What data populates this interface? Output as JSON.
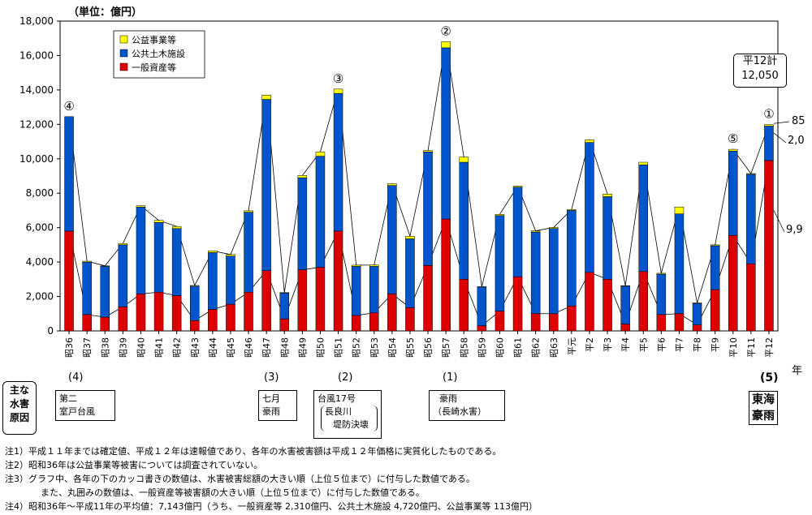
{
  "unit_label": "（単位：億円）",
  "year_axis_label": "年",
  "legend": [
    {
      "label": "公益事業等",
      "color": "#ffff00"
    },
    {
      "label": "公共土木施設",
      "color": "#0055cc"
    },
    {
      "label": "一般資産等",
      "color": "#dd0000"
    }
  ],
  "chart_data": {
    "type": "bar",
    "stacked": true,
    "ylim": [
      0,
      18000
    ],
    "yticks": [
      "0",
      "2,000",
      "4,000",
      "6,000",
      "8,000",
      "10,000",
      "12,000",
      "14,000",
      "16,000",
      "18,000"
    ],
    "grid": false,
    "legend_position": "top-left",
    "categories": [
      "昭36",
      "昭37",
      "昭38",
      "昭39",
      "昭40",
      "昭41",
      "昭42",
      "昭43",
      "昭44",
      "昭45",
      "昭46",
      "昭47",
      "昭48",
      "昭49",
      "昭50",
      "昭51",
      "昭52",
      "昭53",
      "昭54",
      "昭55",
      "昭56",
      "昭57",
      "昭58",
      "昭59",
      "昭60",
      "昭61",
      "昭62",
      "昭63",
      "平元",
      "平2",
      "平3",
      "平4",
      "平5",
      "平6",
      "平7",
      "平8",
      "平9",
      "平10",
      "平11",
      "平12"
    ],
    "series": [
      {
        "name": "一般資産等",
        "values": [
          5800,
          950,
          800,
          1400,
          2150,
          2250,
          2050,
          600,
          1250,
          1550,
          2250,
          3500,
          700,
          3550,
          3700,
          5800,
          900,
          1050,
          2150,
          1350,
          3800,
          6500,
          3000,
          300,
          1150,
          3150,
          1000,
          1000,
          1450,
          3400,
          3000,
          400,
          3450,
          950,
          1000,
          350,
          2400,
          5550,
          3900,
          9900
        ]
      },
      {
        "name": "公共土木施設",
        "values": [
          6650,
          3050,
          2950,
          3600,
          5050,
          4050,
          3900,
          2000,
          3300,
          2800,
          4650,
          9950,
          1500,
          5350,
          6450,
          8000,
          2850,
          2700,
          6300,
          4000,
          6600,
          9950,
          6800,
          2250,
          5550,
          5200,
          4750,
          4950,
          5550,
          7550,
          4800,
          2200,
          6200,
          2350,
          5800,
          1250,
          2550,
          4900,
          5200,
          2000
        ]
      },
      {
        "name": "公益事業等",
        "values": [
          0,
          50,
          30,
          80,
          70,
          120,
          120,
          40,
          100,
          90,
          80,
          250,
          30,
          130,
          250,
          250,
          70,
          80,
          100,
          150,
          80,
          350,
          300,
          20,
          70,
          60,
          60,
          60,
          50,
          150,
          150,
          30,
          150,
          50,
          400,
          30,
          50,
          100,
          40,
          85
        ]
      }
    ]
  },
  "rank_labels": {
    "昭36": "④",
    "昭51": "③",
    "昭57": "②",
    "平10": "⑤",
    "平12": "①"
  },
  "total_callout": {
    "line1": "平12計",
    "line2": "12,050"
  },
  "side_values": [
    "85",
    "2,0",
    "9,9"
  ],
  "causes": {
    "header": [
      "主な",
      "水害",
      "原因"
    ],
    "items": [
      {
        "year": "昭36",
        "rank": "(4)",
        "lines": [
          "第二",
          "室戸台風"
        ]
      },
      {
        "year": "昭47",
        "rank": "(3)",
        "lines": [
          "七月",
          "豪雨"
        ]
      },
      {
        "year": "昭51",
        "rank": "(2)",
        "lines": [
          "台風17号",
          "長良川",
          "堤防決壊"
        ]
      },
      {
        "year": "昭57",
        "rank": "(1)",
        "lines": [
          "豪雨",
          "（長崎水害）"
        ]
      },
      {
        "year": "平12",
        "rank": "(5)",
        "lines": [
          "東海",
          "豪雨"
        ]
      }
    ]
  },
  "notes": [
    "注1）平成１１年までは確定値、平成１２年は速報値であり、各年の水害被害額は平成１２年価格に実質化したものである。",
    "注2）昭和36年は公益事業等被害については調査されていない。",
    "注3）グラフ中、各年の下のカッコ書きの数値は、水害被害総額の大きい順（上位５位まで）に付与した数値である。",
    "　　　　また、丸囲みの数値は、一般資産等被害額の大きい順（上位５位まで）に付与した数値である。",
    "注4）昭和36年～平成11年の平均値：7,143億円（うち、一般資産等 2,310億円、公共土木施設 4,720億円、公益事業等 113億円）"
  ]
}
